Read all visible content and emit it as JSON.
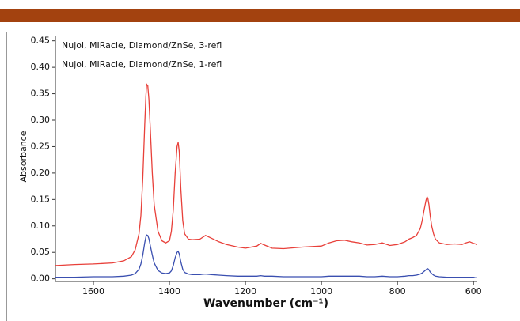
{
  "chart_data": {
    "type": "line",
    "x_label": "Wavenumber (cm⁻¹)",
    "y_label": "Absorbance",
    "x": [
      1700,
      1650,
      1600,
      1550,
      1520,
      1500,
      1490,
      1480,
      1475,
      1470,
      1465,
      1462,
      1460,
      1457,
      1454,
      1450,
      1445,
      1440,
      1430,
      1420,
      1410,
      1400,
      1395,
      1390,
      1385,
      1380,
      1377,
      1374,
      1370,
      1365,
      1360,
      1350,
      1340,
      1320,
      1305,
      1290,
      1270,
      1250,
      1220,
      1200,
      1170,
      1160,
      1150,
      1130,
      1100,
      1050,
      1000,
      980,
      960,
      940,
      920,
      900,
      880,
      860,
      840,
      820,
      800,
      780,
      770,
      760,
      750,
      740,
      735,
      730,
      725,
      722,
      720,
      717,
      714,
      710,
      705,
      700,
      690,
      670,
      650,
      630,
      620,
      610,
      600,
      595,
      590
    ],
    "series": [
      {
        "name": "Nujol, MIRacle, Diamond/ZnSe, 3-refl",
        "color": "#e8403a",
        "values": [
          0.025,
          0.027,
          0.028,
          0.03,
          0.034,
          0.042,
          0.055,
          0.085,
          0.12,
          0.19,
          0.29,
          0.345,
          0.368,
          0.365,
          0.34,
          0.28,
          0.2,
          0.14,
          0.09,
          0.072,
          0.068,
          0.072,
          0.09,
          0.13,
          0.2,
          0.25,
          0.258,
          0.24,
          0.17,
          0.11,
          0.085,
          0.075,
          0.074,
          0.075,
          0.082,
          0.077,
          0.07,
          0.065,
          0.06,
          0.058,
          0.062,
          0.067,
          0.064,
          0.058,
          0.057,
          0.06,
          0.062,
          0.068,
          0.072,
          0.073,
          0.07,
          0.068,
          0.064,
          0.065,
          0.068,
          0.063,
          0.065,
          0.07,
          0.075,
          0.078,
          0.082,
          0.095,
          0.11,
          0.13,
          0.148,
          0.155,
          0.152,
          0.14,
          0.12,
          0.1,
          0.085,
          0.075,
          0.068,
          0.065,
          0.066,
          0.065,
          0.068,
          0.07,
          0.067,
          0.066,
          0.065
        ]
      },
      {
        "name": "Nujol, MIRacle, Diamond/ZnSe, 1-refl",
        "color": "#3a4fb0",
        "values": [
          0.003,
          0.003,
          0.004,
          0.004,
          0.005,
          0.007,
          0.01,
          0.018,
          0.028,
          0.045,
          0.068,
          0.079,
          0.083,
          0.082,
          0.076,
          0.062,
          0.045,
          0.03,
          0.016,
          0.011,
          0.01,
          0.011,
          0.015,
          0.025,
          0.04,
          0.05,
          0.052,
          0.047,
          0.032,
          0.018,
          0.012,
          0.009,
          0.008,
          0.008,
          0.009,
          0.008,
          0.007,
          0.006,
          0.005,
          0.005,
          0.005,
          0.006,
          0.005,
          0.005,
          0.004,
          0.004,
          0.004,
          0.005,
          0.005,
          0.005,
          0.005,
          0.005,
          0.004,
          0.004,
          0.005,
          0.004,
          0.004,
          0.005,
          0.006,
          0.006,
          0.007,
          0.009,
          0.011,
          0.014,
          0.017,
          0.019,
          0.019,
          0.017,
          0.013,
          0.01,
          0.007,
          0.005,
          0.004,
          0.003,
          0.003,
          0.003,
          0.003,
          0.003,
          0.003,
          0.002,
          0.002
        ]
      }
    ],
    "xlim": [
      1700,
      590
    ],
    "ylim": [
      -0.005,
      0.46
    ],
    "xticks": [
      1600,
      1400,
      1200,
      1000,
      800,
      600
    ],
    "yticks": [
      {
        "value": 0,
        "label": "0.00"
      },
      {
        "value": 0.05,
        "label": "0.05"
      },
      {
        "value": 0.1,
        "label": "0.10"
      },
      {
        "value": 0.15,
        "label": "0.15"
      },
      {
        "value": 0.2,
        "label": "0.20"
      },
      {
        "value": 0.25,
        "label": "0.25"
      },
      {
        "value": 0.3,
        "label": "0.30"
      },
      {
        "value": 0.35,
        "label": "0.35"
      },
      {
        "value": 0.4,
        "label": "0.40"
      },
      {
        "value": 0.45,
        "label": "0.45"
      }
    ]
  }
}
